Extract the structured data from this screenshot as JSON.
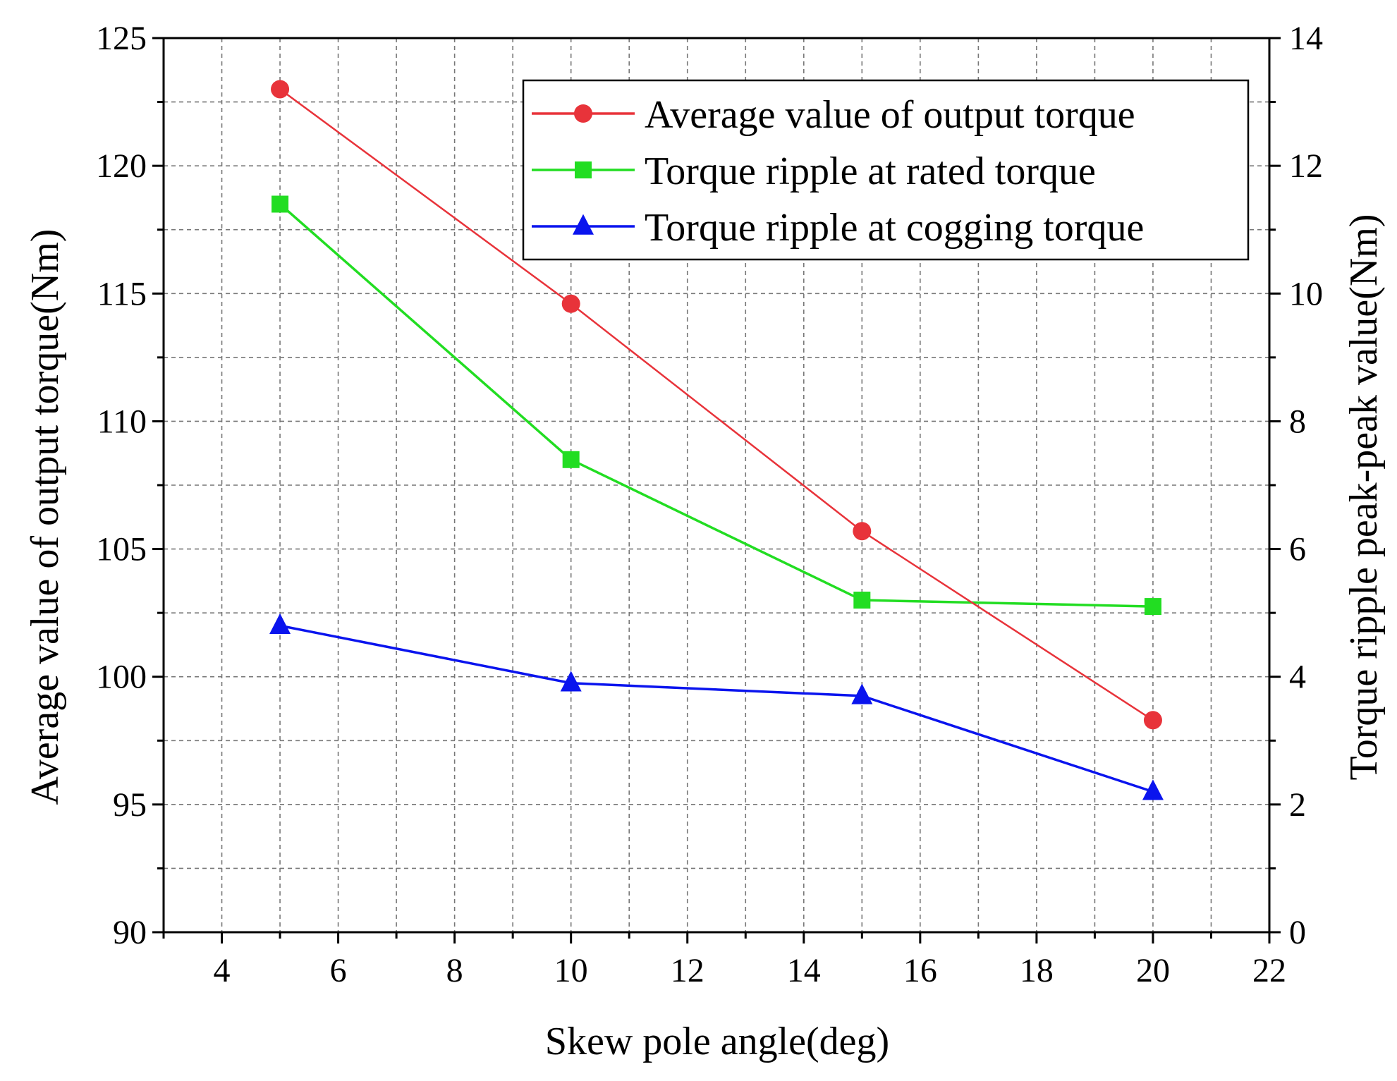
{
  "chart_data": {
    "type": "line",
    "title": "",
    "xlabel": "Skew pole angle(deg)",
    "ylabel_left": "Average value of output torque(Nm)",
    "ylabel_right": "Torque ripple peak-peak value(Nm)",
    "xlim": [
      3,
      22
    ],
    "ylim_left": [
      90,
      125
    ],
    "ylim_right": [
      0,
      14
    ],
    "x_ticks": [
      "4",
      "6",
      "8",
      "10",
      "12",
      "14",
      "16",
      "18",
      "20",
      "22"
    ],
    "y_left_ticks": [
      "90",
      "95",
      "100",
      "105",
      "110",
      "115",
      "120",
      "125"
    ],
    "y_right_ticks": [
      "0",
      "2",
      "4",
      "6",
      "8",
      "10",
      "12",
      "14"
    ],
    "grid": true,
    "legend_position": "top-right",
    "x": [
      5,
      10,
      15,
      20
    ],
    "series": [
      {
        "name": "Average value of output torque",
        "axis": "left",
        "marker": "circle",
        "color": "#e8333a",
        "values": [
          123.0,
          114.6,
          105.7,
          98.3
        ]
      },
      {
        "name": "Torque ripple at rated torque",
        "axis": "right",
        "marker": "square",
        "color": "#22dd22",
        "values": [
          11.4,
          7.4,
          5.2,
          5.1
        ]
      },
      {
        "name": "Torque ripple at cogging torque",
        "axis": "right",
        "marker": "triangle",
        "color": "#0a14ee",
        "values": [
          4.8,
          3.9,
          3.7,
          2.2
        ]
      }
    ]
  }
}
